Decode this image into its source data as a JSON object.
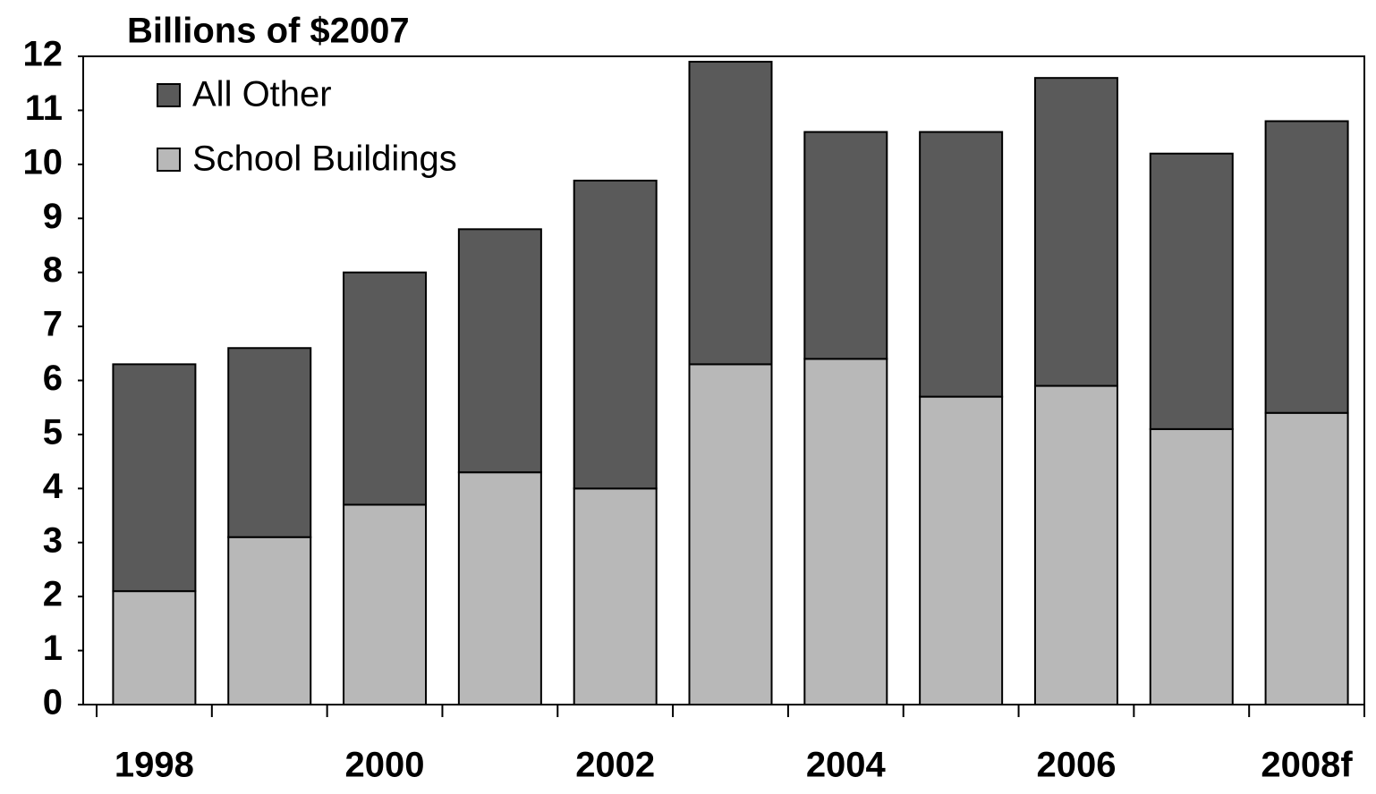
{
  "chart_data": {
    "type": "stacked_bar",
    "title": "Billions of $2007",
    "categories": [
      "1998",
      null,
      "2000",
      null,
      "2002",
      null,
      "2004",
      null,
      "2006",
      null,
      "2008f"
    ],
    "series": [
      {
        "name": "School Buildings",
        "color": "#b8b8b8",
        "values": [
          2.1,
          3.1,
          3.7,
          4.3,
          4.0,
          6.3,
          6.4,
          5.7,
          5.9,
          5.1,
          5.4
        ]
      },
      {
        "name": "All Other",
        "color": "#5a5a5a",
        "values": [
          4.2,
          3.5,
          4.3,
          4.5,
          5.7,
          5.6,
          4.2,
          4.9,
          5.7,
          5.1,
          5.4
        ]
      }
    ],
    "ylim": [
      0,
      12
    ],
    "yticks": [
      0,
      1,
      2,
      3,
      4,
      5,
      6,
      7,
      8,
      9,
      10,
      11,
      12
    ],
    "legend": "upper left"
  }
}
